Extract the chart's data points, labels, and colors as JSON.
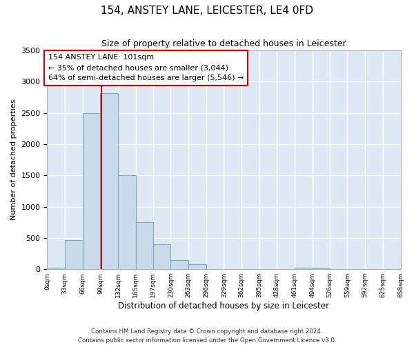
{
  "title": "154, ANSTEY LANE, LEICESTER, LE4 0FD",
  "subtitle": "Size of property relative to detached houses in Leicester",
  "xlabel": "Distribution of detached houses by size in Leicester",
  "ylabel": "Number of detached properties",
  "bar_color": "#c9daea",
  "bar_edge_color": "#7aaac8",
  "plot_bg_color": "#dce9f5",
  "fig_bg_color": "#ffffff",
  "grid_color": "#ffffff",
  "bin_edges": [
    0,
    33,
    66,
    99,
    132,
    165,
    197,
    230,
    263,
    296,
    329,
    362,
    395,
    428,
    461,
    494,
    526,
    559,
    592,
    625,
    658
  ],
  "bin_labels": [
    "0sqm",
    "33sqm",
    "66sqm",
    "99sqm",
    "132sqm",
    "165sqm",
    "197sqm",
    "230sqm",
    "263sqm",
    "296sqm",
    "329sqm",
    "362sqm",
    "395sqm",
    "428sqm",
    "461sqm",
    "494sqm",
    "526sqm",
    "559sqm",
    "592sqm",
    "625sqm",
    "658sqm"
  ],
  "bar_heights": [
    28,
    470,
    2500,
    2820,
    1500,
    750,
    400,
    150,
    75,
    0,
    0,
    0,
    0,
    0,
    28,
    18,
    0,
    0,
    0,
    0
  ],
  "property_size": 101,
  "vline_color": "#cc0000",
  "annotation_box_edge_color": "#cc0000",
  "annotation_text_line1": "154 ANSTEY LANE: 101sqm",
  "annotation_text_line2": "← 35% of detached houses are smaller (3,044)",
  "annotation_text_line3": "64% of semi-detached houses are larger (5,546) →",
  "ylim": [
    0,
    3500
  ],
  "yticks": [
    0,
    500,
    1000,
    1500,
    2000,
    2500,
    3000,
    3500
  ],
  "footer_line1": "Contains HM Land Registry data © Crown copyright and database right 2024.",
  "footer_line2": "Contains public sector information licensed under the Open Government Licence v3.0."
}
